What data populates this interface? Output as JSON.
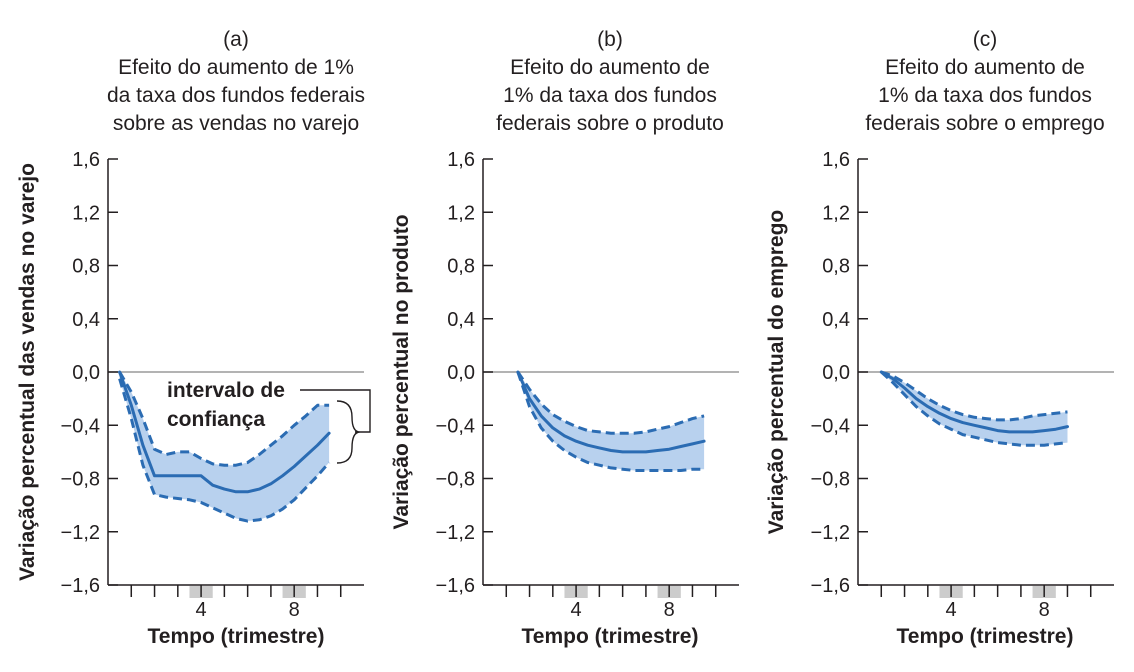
{
  "colors": {
    "band": "#b8d1ee",
    "line": "#2b6cb3",
    "axis": "#231f20",
    "zero_line": "#9a9a9a",
    "tick_highlight": "#cccccc"
  },
  "chart_data": [
    {
      "type": "line",
      "panel": "(a)",
      "title": "Efeito do aumento de 1% da taxa dos fundos federais sobre as vendas no varejo",
      "title_lines": [
        "Efeito do aumento de 1%",
        "da taxa dos fundos federais",
        "sobre as vendas no varejo"
      ],
      "xlabel": "Tempo (trimestre)",
      "ylabel": "Variação percentual das vendas no varejo",
      "xlim": [
        0,
        11
      ],
      "ylim": [
        -1.6,
        1.6
      ],
      "xticks": [
        4,
        8
      ],
      "xtick_labels": [
        "4",
        "8"
      ],
      "yticks": [
        1.6,
        1.2,
        0.8,
        0.4,
        0.0,
        -0.4,
        -0.8,
        -1.2,
        -1.6
      ],
      "ytick_labels": [
        "1,6",
        "1,2",
        "0,8",
        "0,4",
        "0,0",
        "−0,4",
        "−0,8",
        "−1,2",
        "−1,6"
      ],
      "x": [
        0.5,
        1,
        1.5,
        2,
        2.5,
        3,
        3.5,
        4,
        4.5,
        5,
        5.5,
        6,
        6.5,
        7,
        7.5,
        8,
        8.5,
        9,
        9.5
      ],
      "series": [
        {
          "role": "estimate",
          "style": "solid",
          "values": [
            0.0,
            -0.25,
            -0.55,
            -0.78,
            -0.78,
            -0.78,
            -0.78,
            -0.78,
            -0.85,
            -0.88,
            -0.9,
            -0.9,
            -0.88,
            -0.84,
            -0.78,
            -0.71,
            -0.63,
            -0.55,
            -0.46
          ]
        },
        {
          "role": "upper",
          "style": "dashed",
          "values": [
            0.0,
            -0.15,
            -0.35,
            -0.58,
            -0.62,
            -0.6,
            -0.6,
            -0.65,
            -0.69,
            -0.7,
            -0.7,
            -0.68,
            -0.62,
            -0.55,
            -0.48,
            -0.4,
            -0.33,
            -0.25,
            -0.25
          ]
        },
        {
          "role": "lower",
          "style": "dashed",
          "values": [
            -0.05,
            -0.35,
            -0.7,
            -0.92,
            -0.94,
            -0.95,
            -0.96,
            -0.98,
            -1.02,
            -1.06,
            -1.1,
            -1.12,
            -1.11,
            -1.08,
            -1.03,
            -0.96,
            -0.87,
            -0.78,
            -0.68
          ]
        }
      ],
      "annotation": {
        "lines": [
          "intervalo de",
          "confiança"
        ]
      }
    },
    {
      "type": "line",
      "panel": "(b)",
      "title": "Efeito do aumento de 1% da taxa dos fundos federais sobre o produto",
      "title_lines": [
        "Efeito do aumento de",
        "1% da taxa dos fundos",
        "federais sobre o produto"
      ],
      "xlabel": "Tempo (trimestre)",
      "ylabel": "Variação percentual no produto",
      "xlim": [
        0,
        11
      ],
      "ylim": [
        -1.6,
        1.6
      ],
      "xticks": [
        4,
        8
      ],
      "xtick_labels": [
        "4",
        "8"
      ],
      "yticks": [
        1.6,
        1.2,
        0.8,
        0.4,
        0.0,
        -0.4,
        -0.8,
        -1.2,
        -1.6
      ],
      "ytick_labels": [
        "1,6",
        "1,2",
        "0,8",
        "0,4",
        "0,0",
        "−0,4",
        "−0,8",
        "−1,2",
        "−1,6"
      ],
      "x": [
        1.5,
        2,
        2.5,
        3,
        3.5,
        4,
        4.5,
        5,
        5.5,
        6,
        6.5,
        7,
        7.5,
        8,
        8.5,
        9,
        9.5
      ],
      "series": [
        {
          "role": "estimate",
          "style": "solid",
          "values": [
            0.0,
            -0.2,
            -0.33,
            -0.42,
            -0.48,
            -0.52,
            -0.55,
            -0.57,
            -0.59,
            -0.6,
            -0.6,
            -0.6,
            -0.59,
            -0.58,
            -0.56,
            -0.54,
            -0.52
          ]
        },
        {
          "role": "upper",
          "style": "dashed",
          "values": [
            0.0,
            -0.13,
            -0.24,
            -0.32,
            -0.37,
            -0.41,
            -0.44,
            -0.45,
            -0.46,
            -0.46,
            -0.46,
            -0.45,
            -0.43,
            -0.41,
            -0.38,
            -0.35,
            -0.33
          ]
        },
        {
          "role": "lower",
          "style": "dashed",
          "values": [
            0.0,
            -0.26,
            -0.42,
            -0.52,
            -0.59,
            -0.64,
            -0.68,
            -0.7,
            -0.72,
            -0.73,
            -0.74,
            -0.74,
            -0.74,
            -0.74,
            -0.74,
            -0.73,
            -0.73
          ]
        }
      ]
    },
    {
      "type": "line",
      "panel": "(c)",
      "title": "Efeito do aumento de 1% da taxa dos fundos federais sobre o emprego",
      "title_lines": [
        "Efeito do aumento de",
        "1% da taxa dos fundos",
        "federais sobre o emprego"
      ],
      "xlabel": "Tempo (trimestre)",
      "ylabel": "Variação percentual do emprego",
      "xlim": [
        0,
        11
      ],
      "ylim": [
        -1.6,
        1.6
      ],
      "xticks": [
        4,
        8
      ],
      "xtick_labels": [
        "4",
        "8"
      ],
      "yticks": [
        1.6,
        1.2,
        0.8,
        0.4,
        0.0,
        -0.4,
        -0.8,
        -1.2,
        -1.6
      ],
      "ytick_labels": [
        "1,6",
        "1,2",
        "0,8",
        "0,4",
        "0,0",
        "−0,4",
        "−0,8",
        "−1,2",
        "−1,6"
      ],
      "x": [
        1,
        1.5,
        2,
        2.5,
        3,
        3.5,
        4,
        4.5,
        5,
        5.5,
        6,
        6.5,
        7,
        7.5,
        8,
        8.5,
        9
      ],
      "series": [
        {
          "role": "estimate",
          "style": "solid",
          "values": [
            0.0,
            -0.05,
            -0.12,
            -0.2,
            -0.26,
            -0.31,
            -0.35,
            -0.38,
            -0.4,
            -0.42,
            -0.44,
            -0.45,
            -0.45,
            -0.45,
            -0.44,
            -0.43,
            -0.41
          ]
        },
        {
          "role": "upper",
          "style": "dashed",
          "values": [
            0.0,
            -0.03,
            -0.08,
            -0.14,
            -0.2,
            -0.25,
            -0.29,
            -0.32,
            -0.34,
            -0.35,
            -0.36,
            -0.36,
            -0.35,
            -0.33,
            -0.32,
            -0.31,
            -0.3
          ]
        },
        {
          "role": "lower",
          "style": "dashed",
          "values": [
            0.0,
            -0.08,
            -0.17,
            -0.26,
            -0.33,
            -0.39,
            -0.43,
            -0.47,
            -0.49,
            -0.51,
            -0.53,
            -0.54,
            -0.55,
            -0.55,
            -0.55,
            -0.54,
            -0.53
          ]
        }
      ]
    }
  ]
}
